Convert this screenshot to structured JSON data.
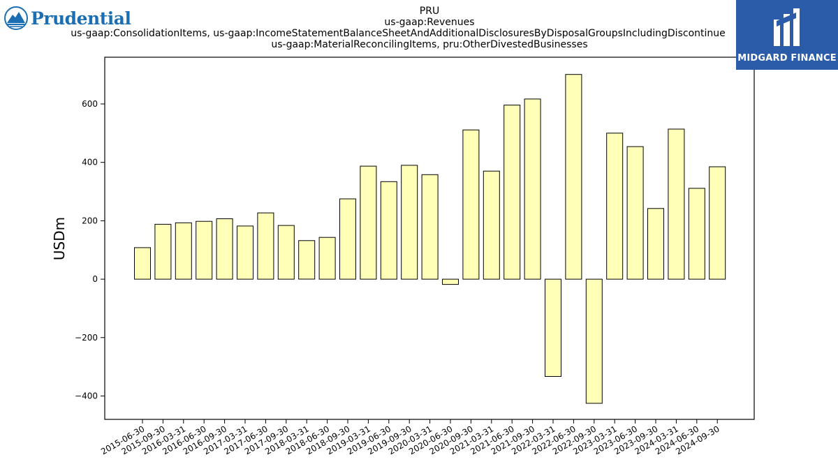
{
  "logos": {
    "left_name": "Prudential",
    "right_name": "MIDGARD FINANCE"
  },
  "chart_data": {
    "type": "bar",
    "title_lines": [
      "PRU",
      "us-gaap:Revenues",
      "us-gaap:ConsolidationItems, us-gaap:IncomeStatementBalanceSheetAndAdditionalDisclosuresByDisposalGroupsIncludingDiscontinue",
      "us-gaap:MaterialReconcilingItems, pru:OtherDivestedBusinesses"
    ],
    "ylabel": "USDm",
    "xlabel": "",
    "ylim": [
      -480,
      760
    ],
    "yticks": [
      -400,
      -200,
      0,
      200,
      400,
      600
    ],
    "grid": false,
    "bar_color": "#ffffb8",
    "bar_edge_color": "#000000",
    "categories": [
      "2015-06-30",
      "2015-09-30",
      "2016-03-31",
      "2016-06-30",
      "2016-09-30",
      "2017-03-31",
      "2017-06-30",
      "2017-09-30",
      "2018-03-31",
      "2018-06-30",
      "2018-09-30",
      "2019-03-31",
      "2019-06-30",
      "2019-09-30",
      "2020-03-31",
      "2020-06-30",
      "2020-09-30",
      "2021-03-31",
      "2021-06-30",
      "2021-09-30",
      "2022-03-31",
      "2022-06-30",
      "2022-09-30",
      "2023-03-31",
      "2023-06-30",
      "2023-09-30",
      "2024-03-31",
      "2024-06-30",
      "2024-09-30"
    ],
    "values": [
      108,
      188,
      193,
      198,
      207,
      182,
      227,
      184,
      132,
      143,
      275,
      387,
      334,
      390,
      358,
      -18,
      511,
      370,
      596,
      617,
      -333,
      701,
      -425,
      500,
      454,
      242,
      514,
      311,
      385
    ]
  }
}
